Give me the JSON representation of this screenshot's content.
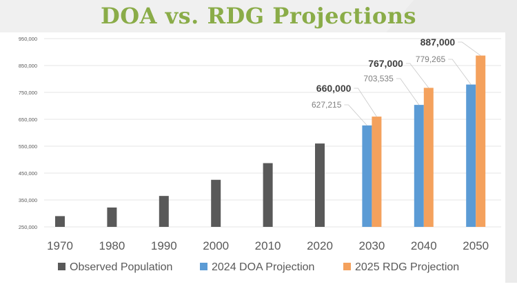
{
  "chart_data": {
    "type": "bar",
    "title": "DOA vs. RDG Projections",
    "categories": [
      "1970",
      "1980",
      "1990",
      "2000",
      "2010",
      "2020",
      "2030",
      "2040",
      "2050"
    ],
    "series": [
      {
        "name": "Observed Population",
        "color": "#595959",
        "values": [
          290000,
          322000,
          365000,
          425000,
          487000,
          560000,
          null,
          null,
          null
        ]
      },
      {
        "name": "2024 DOA Projection",
        "color": "#5b9bd5",
        "values": [
          null,
          null,
          null,
          null,
          null,
          null,
          627215,
          703535,
          779265
        ]
      },
      {
        "name": "2025 RDG Projection",
        "color": "#f4a15d",
        "values": [
          null,
          null,
          null,
          null,
          null,
          null,
          660000,
          767000,
          887000
        ]
      }
    ],
    "data_labels": {
      "doa": [
        "627,215",
        "703,535",
        "779,265"
      ],
      "rdg": [
        "660,000",
        "767,000",
        "887,000"
      ]
    },
    "yticks": [
      "250,000",
      "350,000",
      "450,000",
      "550,000",
      "650,000",
      "750,000",
      "850,000",
      "950,000"
    ],
    "ylim": [
      250000,
      950000
    ],
    "grid": true,
    "legend": "bottom"
  }
}
